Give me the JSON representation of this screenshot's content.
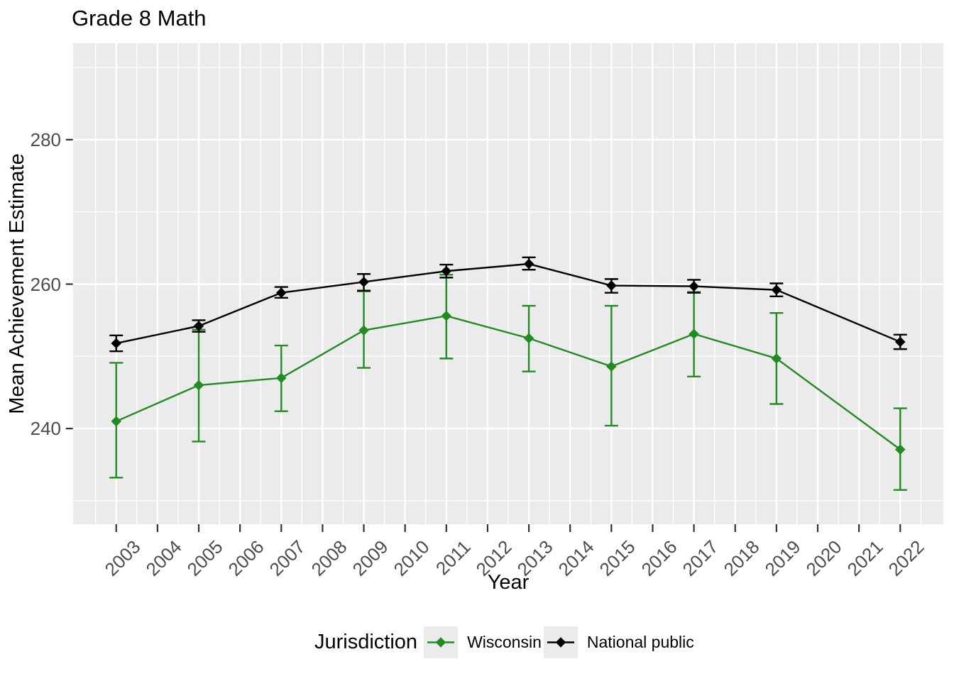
{
  "title": "Grade 8 Math",
  "axes": {
    "x_label": "Year",
    "y_label": "Mean Achievement Estimate"
  },
  "legend": {
    "title": "Jurisdiction",
    "entries": [
      {
        "label": "Wisconsin",
        "color": "#228B22"
      },
      {
        "label": "National public",
        "color": "#000000"
      }
    ]
  },
  "colors": {
    "panel_background": "#EBEBEB",
    "gridline": "#FFFFFF",
    "tick_label": "#4D4D4D",
    "tick_mark": "#333333",
    "title_text": "#000000"
  },
  "chart_data": {
    "type": "line",
    "title": "Grade 8 Math",
    "xlabel": "Year",
    "ylabel": "Mean Achievement Estimate",
    "legend_title": "Jurisdiction",
    "legend_position": "bottom",
    "grid": true,
    "error_bars": true,
    "x": [
      2003,
      2005,
      2007,
      2009,
      2011,
      2013,
      2015,
      2017,
      2019,
      2022
    ],
    "x_ticks": [
      2003,
      2004,
      2005,
      2006,
      2007,
      2008,
      2009,
      2010,
      2011,
      2012,
      2013,
      2014,
      2015,
      2016,
      2017,
      2018,
      2019,
      2020,
      2021,
      2022
    ],
    "y_ticks": [
      240,
      260,
      280
    ],
    "y_minor_ticks": [
      230,
      250,
      270,
      290
    ],
    "xlim": [
      2001.95,
      2023.05
    ],
    "ylim": [
      226.75,
      293.35
    ],
    "series": [
      {
        "name": "Wisconsin",
        "color": "#228B22",
        "values": [
          241.0,
          246.0,
          247.0,
          253.6,
          255.6,
          252.5,
          248.6,
          253.1,
          249.7,
          237.1
        ],
        "err_low": [
          233.2,
          238.2,
          242.4,
          248.4,
          249.7,
          247.9,
          240.4,
          247.2,
          243.4,
          231.5
        ],
        "err_high": [
          249.1,
          253.7,
          251.5,
          259.0,
          261.3,
          257.0,
          257.0,
          258.9,
          256.0,
          242.8
        ]
      },
      {
        "name": "National public",
        "color": "#000000",
        "values": [
          251.8,
          254.2,
          258.8,
          260.3,
          261.8,
          262.8,
          259.8,
          259.7,
          259.2,
          252.0
        ],
        "err_low": [
          250.7,
          253.4,
          258.1,
          259.1,
          260.9,
          262.0,
          258.8,
          258.8,
          258.3,
          251.0
        ],
        "err_high": [
          252.9,
          255.0,
          259.6,
          261.4,
          262.7,
          263.7,
          260.7,
          260.6,
          260.1,
          253.0
        ]
      }
    ]
  }
}
